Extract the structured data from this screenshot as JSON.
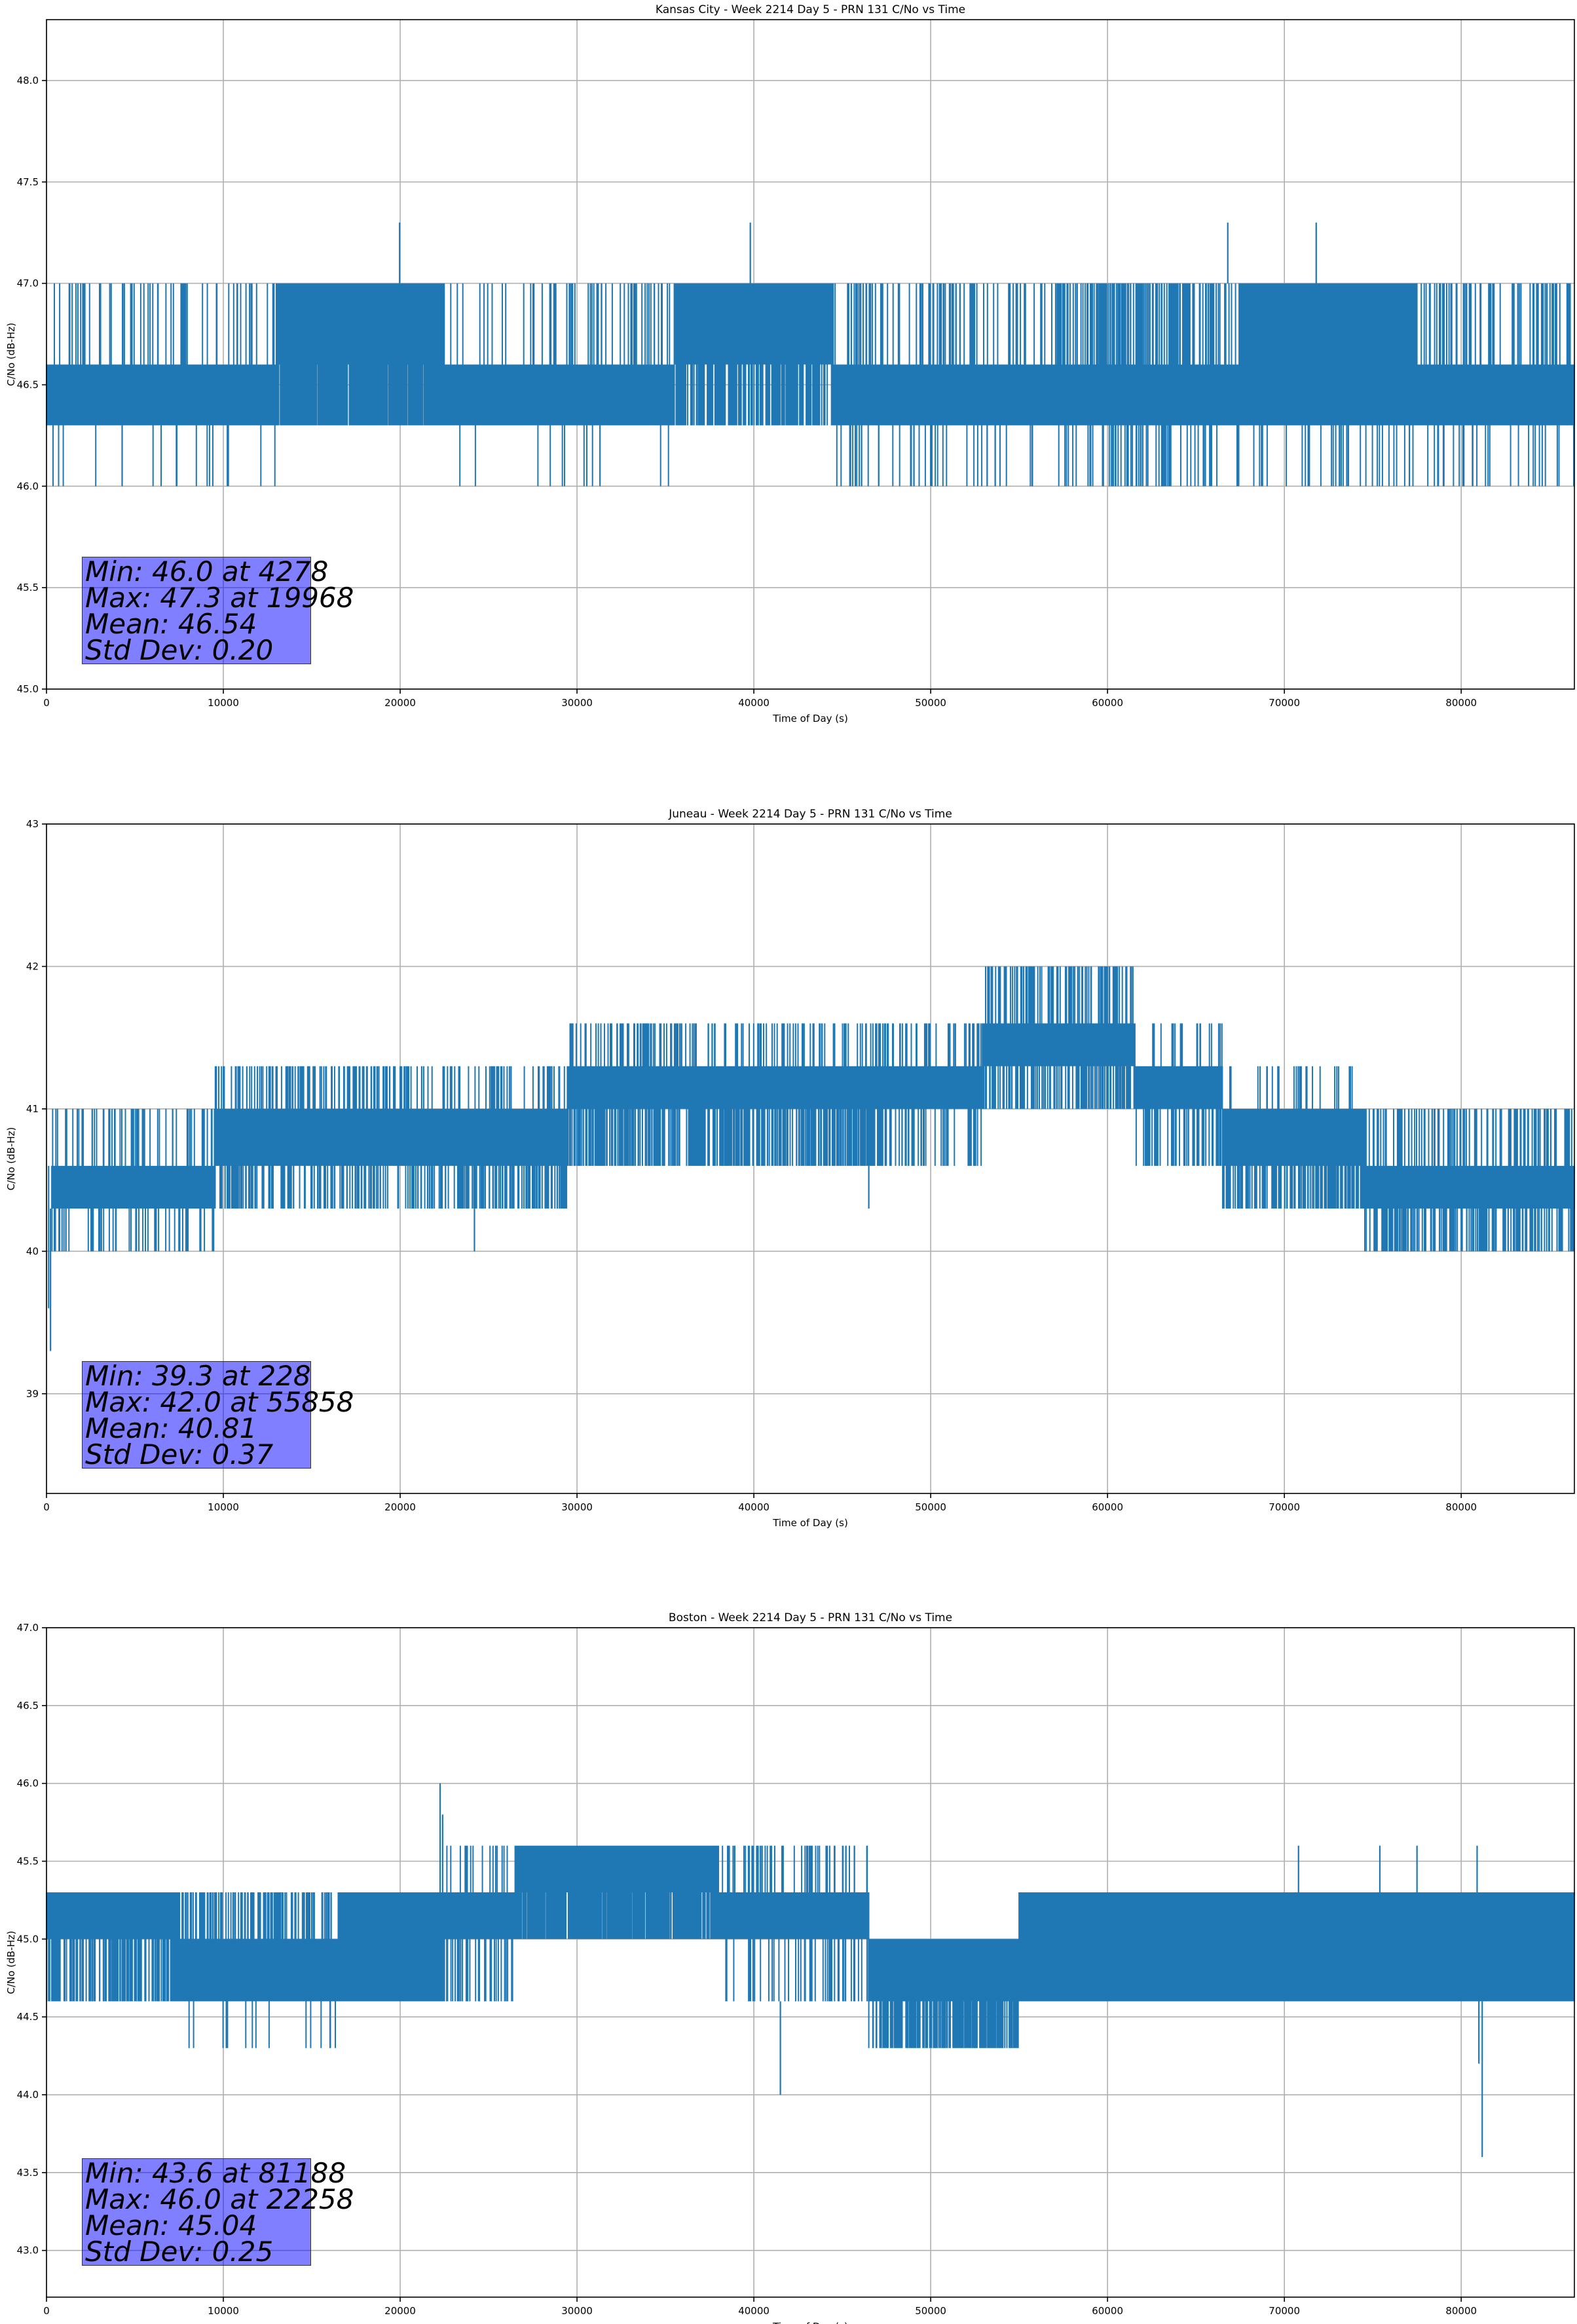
{
  "chart_data": [
    {
      "type": "line",
      "title": "Kansas City - Week 2214 Day 5 - PRN 131 C/No vs Time",
      "xlabel": "Time of Day (s)",
      "ylabel": "C/No (dB-Hz)",
      "xlim": [
        0,
        86400
      ],
      "ylim": [
        45.0,
        48.3
      ],
      "xticks": [
        0,
        10000,
        20000,
        30000,
        40000,
        50000,
        60000,
        70000,
        80000
      ],
      "yticks": [
        "45.0",
        "45.5",
        "46.0",
        "46.5",
        "47.0",
        "47.5",
        "48.0"
      ],
      "grid": true,
      "series_color": "#1f77b4",
      "levels": [
        46.0,
        46.3,
        46.6,
        47.0,
        47.3
      ],
      "segments": [
        {
          "x": [
            0,
            13000
          ],
          "base": [
            46.3,
            46.6
          ],
          "up": 47.0,
          "down": 46.0,
          "p_up": 0.06,
          "p_down": 0.01
        },
        {
          "x": [
            13000,
            22500
          ],
          "base": [
            46.6,
            47.0
          ],
          "low": 46.3,
          "p_low": 0.5
        },
        {
          "x": [
            22500,
            35500
          ],
          "base": [
            46.3,
            46.6
          ],
          "up": 47.0,
          "down": 46.0,
          "p_up": 0.05,
          "p_down": 0.01
        },
        {
          "x": [
            35500,
            44500
          ],
          "base": [
            46.6,
            47.0
          ],
          "low": 46.3,
          "p_low": 0.25
        },
        {
          "x": [
            44500,
            86400
          ],
          "base": [
            46.3,
            46.6
          ],
          "up": 47.0,
          "down": 46.0,
          "p_up": 0.08,
          "p_down": 0.04
        },
        {
          "x": [
            58500,
            65000
          ],
          "base": [
            46.3,
            46.6
          ],
          "up": 47.0,
          "down": 46.0,
          "p_up": 0.12,
          "p_down": 0.02
        },
        {
          "x": [
            67500,
            77500
          ],
          "base": [
            46.6,
            47.0
          ],
          "low": 46.3,
          "p_low": 0.45
        }
      ],
      "spikes": [
        {
          "x": 19968,
          "y1": 47.0,
          "y2": 47.3
        },
        {
          "x": 39800,
          "y1": 47.0,
          "y2": 47.3
        },
        {
          "x": 66800,
          "y1": 47.0,
          "y2": 47.3
        },
        {
          "x": 71800,
          "y1": 47.0,
          "y2": 47.3
        },
        {
          "x": 4278,
          "y1": 46.3,
          "y2": 46.0
        },
        {
          "x": 31300,
          "y1": 46.3,
          "y2": 46.0
        },
        {
          "x": 86000,
          "y1": 46.3,
          "y2": 47.0
        }
      ],
      "stats": {
        "min": "Min: 46.0 at 4278",
        "max": "Max: 47.3 at 19968",
        "mean": "Mean: 46.54",
        "std": "Std Dev: 0.20"
      }
    },
    {
      "type": "line",
      "title": "Juneau - Week 2214 Day 5 - PRN 131 C/No vs Time",
      "xlabel": "Time of Day (s)",
      "ylabel": "C/No (dB-Hz)",
      "xlim": [
        0,
        86400
      ],
      "ylim": [
        38.3,
        43.0
      ],
      "xticks": [
        0,
        10000,
        20000,
        30000,
        40000,
        50000,
        60000,
        70000,
        80000
      ],
      "yticks": [
        "39",
        "40",
        "41",
        "42",
        "43"
      ],
      "grid": true,
      "series_color": "#1f77b4",
      "levels": [
        40.0,
        40.3,
        40.6,
        41.0,
        41.3,
        41.6,
        42.0
      ],
      "segments": [
        {
          "x": [
            300,
            9500
          ],
          "base": [
            40.3,
            40.6
          ],
          "up": 41.0,
          "down": 40.0,
          "p_up": 0.08,
          "p_down": 0.07
        },
        {
          "x": [
            9500,
            21500
          ],
          "base": [
            40.6,
            41.0
          ],
          "up": 41.3,
          "down": 40.3,
          "p_up": 0.12,
          "p_down": 0.12
        },
        {
          "x": [
            21500,
            29500
          ],
          "base": [
            40.6,
            41.0
          ],
          "up": 41.3,
          "down": 40.3,
          "p_up": 0.07,
          "p_down": 0.18
        },
        {
          "x": [
            29500,
            47500
          ],
          "base": [
            41.0,
            41.3
          ],
          "up": 41.6,
          "down": 40.6,
          "p_up": 0.1,
          "p_down": 0.22
        },
        {
          "x": [
            47500,
            53000
          ],
          "base": [
            41.0,
            41.3
          ],
          "up": 41.6,
          "down": 40.6,
          "p_up": 0.06,
          "p_down": 0.1
        },
        {
          "x": [
            53000,
            61500
          ],
          "base": [
            41.3,
            41.6
          ],
          "up": 42.0,
          "down": 41.0,
          "p_up": 0.12,
          "p_down": 0.2
        },
        {
          "x": [
            61500,
            66500
          ],
          "base": [
            41.0,
            41.3
          ],
          "up": 41.6,
          "down": 40.6,
          "p_up": 0.04,
          "p_down": 0.1
        },
        {
          "x": [
            66500,
            74500
          ],
          "base": [
            40.6,
            41.0
          ],
          "up": 41.3,
          "down": 40.3,
          "p_up": 0.05,
          "p_down": 0.2
        },
        {
          "x": [
            74500,
            86400
          ],
          "base": [
            40.3,
            40.6
          ],
          "up": 41.0,
          "down": 40.0,
          "p_up": 0.1,
          "p_down": 0.15
        }
      ],
      "spikes": [
        {
          "x": 228,
          "y1": 40.3,
          "y2": 39.3
        },
        {
          "x": 120,
          "y1": 40.6,
          "y2": 39.6
        },
        {
          "x": 24200,
          "y1": 40.3,
          "y2": 40.0
        },
        {
          "x": 46500,
          "y1": 40.6,
          "y2": 40.3
        },
        {
          "x": 55858,
          "y1": 41.6,
          "y2": 42.0
        }
      ],
      "stats": {
        "min": "Min: 39.3 at 228",
        "max": "Max: 42.0 at 55858",
        "mean": "Mean: 40.81",
        "std": "Std Dev: 0.37"
      }
    },
    {
      "type": "line",
      "title": "Boston - Week 2214 Day 5 - PRN 131 C/No vs Time",
      "xlabel": "Time of Day (s)",
      "ylabel": "C/No (dB-Hz)",
      "xlim": [
        0,
        86400
      ],
      "ylim": [
        42.7,
        47.0
      ],
      "xticks": [
        0,
        10000,
        20000,
        30000,
        40000,
        50000,
        60000,
        70000,
        80000
      ],
      "yticks": [
        "43.0",
        "43.5",
        "44.0",
        "44.5",
        "45.0",
        "45.5",
        "46.0",
        "46.5",
        "47.0"
      ],
      "grid": true,
      "series_color": "#1f77b4",
      "levels": [
        44.3,
        44.6,
        45.0,
        45.3,
        45.6
      ],
      "segments": [
        {
          "x": [
            0,
            7500
          ],
          "base": [
            45.0,
            45.3
          ],
          "down": 44.6,
          "p_down": 0.22
        },
        {
          "x": [
            7500,
            16500
          ],
          "base": [
            44.6,
            45.0
          ],
          "up": 45.3,
          "down": 44.3,
          "p_up": 0.15,
          "p_down": 0.02
        },
        {
          "x": [
            16500,
            22500
          ],
          "base": [
            44.6,
            45.3
          ],
          "up": 45.3,
          "p_up": 0.3
        },
        {
          "x": [
            22500,
            26500
          ],
          "base": [
            45.0,
            45.3
          ],
          "down": 44.6,
          "up": 45.6,
          "p_down": 0.12,
          "p_up": 0.05
        },
        {
          "x": [
            26500,
            38000
          ],
          "base": [
            45.3,
            45.6
          ],
          "low": 45.0,
          "p_low": 0.4
        },
        {
          "x": [
            38000,
            46500
          ],
          "base": [
            45.0,
            45.3
          ],
          "up": 45.6,
          "down": 44.6,
          "p_up": 0.06,
          "p_down": 0.06
        },
        {
          "x": [
            46500,
            55000
          ],
          "base": [
            44.6,
            45.0
          ],
          "low": 44.3,
          "up": 45.3,
          "p_low": 0.25,
          "p_up": 0.05
        },
        {
          "x": [
            55000,
            86400
          ],
          "base": [
            44.6,
            45.3
          ],
          "up": 45.3,
          "p_up": 0.6
        }
      ],
      "spikes": [
        {
          "x": 22258,
          "y1": 45.3,
          "y2": 46.0
        },
        {
          "x": 22400,
          "y1": 45.3,
          "y2": 45.8
        },
        {
          "x": 41500,
          "y1": 44.6,
          "y2": 44.0
        },
        {
          "x": 81188,
          "y1": 44.6,
          "y2": 43.6
        },
        {
          "x": 81000,
          "y1": 45.0,
          "y2": 44.2
        },
        {
          "x": 80900,
          "y1": 45.3,
          "y2": 45.6
        },
        {
          "x": 70800,
          "y1": 45.3,
          "y2": 45.6
        },
        {
          "x": 75400,
          "y1": 45.3,
          "y2": 45.6
        },
        {
          "x": 77500,
          "y1": 45.3,
          "y2": 45.6
        }
      ],
      "stats": {
        "min": "Min: 43.6 at 81188",
        "max": "Max: 46.0 at 22258",
        "mean": "Mean: 45.04",
        "std": "Std Dev: 0.25"
      }
    }
  ]
}
